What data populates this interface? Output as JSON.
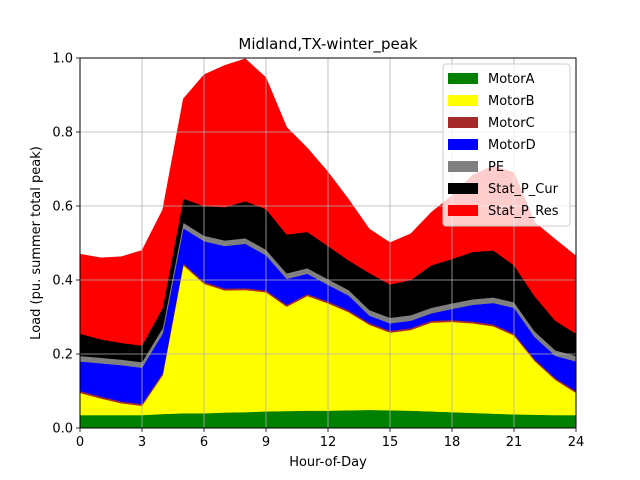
{
  "chart_data": {
    "type": "area",
    "stacked": true,
    "title": "Midland,TX-winter_peak",
    "xlabel": "Hour-of-Day",
    "ylabel": "Load (pu. summer total peak)",
    "xlim": [
      0,
      24
    ],
    "ylim": [
      0,
      1.0
    ],
    "xticks": [
      "0",
      "3",
      "6",
      "9",
      "12",
      "15",
      "18",
      "21",
      "24"
    ],
    "yticks": [
      "0.0",
      "0.2",
      "0.4",
      "0.6",
      "0.8",
      "1.0"
    ],
    "grid": true,
    "legend_position": "top-right",
    "x": [
      0,
      1,
      2,
      3,
      4,
      5,
      6,
      7,
      8,
      9,
      10,
      11,
      12,
      13,
      14,
      15,
      16,
      17,
      18,
      19,
      20,
      21,
      22,
      23,
      24
    ],
    "series": [
      {
        "name": "MotorA",
        "color": "#008000",
        "values": [
          0.035,
          0.035,
          0.035,
          0.035,
          0.038,
          0.04,
          0.04,
          0.042,
          0.043,
          0.045,
          0.046,
          0.047,
          0.047,
          0.048,
          0.049,
          0.048,
          0.047,
          0.045,
          0.043,
          0.041,
          0.039,
          0.037,
          0.036,
          0.035,
          0.035
        ]
      },
      {
        "name": "MotorB",
        "color": "#ffff00",
        "values": [
          0.06,
          0.045,
          0.032,
          0.025,
          0.105,
          0.4,
          0.35,
          0.33,
          0.33,
          0.322,
          0.282,
          0.31,
          0.29,
          0.265,
          0.23,
          0.21,
          0.218,
          0.24,
          0.244,
          0.242,
          0.236,
          0.213,
          0.145,
          0.095,
          0.06
        ]
      },
      {
        "name": "MotorC",
        "color": "#a52a2a",
        "values": [
          0.005,
          0.005,
          0.005,
          0.005,
          0.005,
          0.005,
          0.005,
          0.005,
          0.005,
          0.005,
          0.005,
          0.005,
          0.005,
          0.005,
          0.005,
          0.005,
          0.005,
          0.005,
          0.005,
          0.005,
          0.005,
          0.005,
          0.005,
          0.005,
          0.005
        ]
      },
      {
        "name": "MotorD",
        "color": "#0000ff",
        "values": [
          0.08,
          0.09,
          0.098,
          0.098,
          0.107,
          0.095,
          0.11,
          0.115,
          0.12,
          0.095,
          0.07,
          0.055,
          0.045,
          0.04,
          0.02,
          0.02,
          0.02,
          0.02,
          0.03,
          0.045,
          0.058,
          0.07,
          0.06,
          0.06,
          0.08
        ]
      },
      {
        "name": "PE",
        "color": "#808080",
        "values": [
          0.015,
          0.015,
          0.015,
          0.015,
          0.015,
          0.015,
          0.015,
          0.015,
          0.015,
          0.015,
          0.015,
          0.015,
          0.015,
          0.015,
          0.015,
          0.015,
          0.015,
          0.015,
          0.015,
          0.015,
          0.015,
          0.015,
          0.015,
          0.015,
          0.015
        ]
      },
      {
        "name": "Stat_P_Cur",
        "color": "#000000",
        "values": [
          0.06,
          0.05,
          0.045,
          0.045,
          0.055,
          0.065,
          0.08,
          0.09,
          0.1,
          0.11,
          0.105,
          0.098,
          0.09,
          0.08,
          0.1,
          0.09,
          0.095,
          0.115,
          0.12,
          0.128,
          0.127,
          0.1,
          0.095,
          0.08,
          0.06
        ]
      },
      {
        "name": "Stat_P_Res",
        "color": "#ff0000",
        "values": [
          0.215,
          0.22,
          0.233,
          0.257,
          0.265,
          0.27,
          0.355,
          0.383,
          0.385,
          0.355,
          0.29,
          0.227,
          0.2,
          0.165,
          0.119,
          0.113,
          0.125,
          0.143,
          0.171,
          0.208,
          0.228,
          0.25,
          0.2,
          0.22,
          0.21
        ]
      }
    ]
  }
}
